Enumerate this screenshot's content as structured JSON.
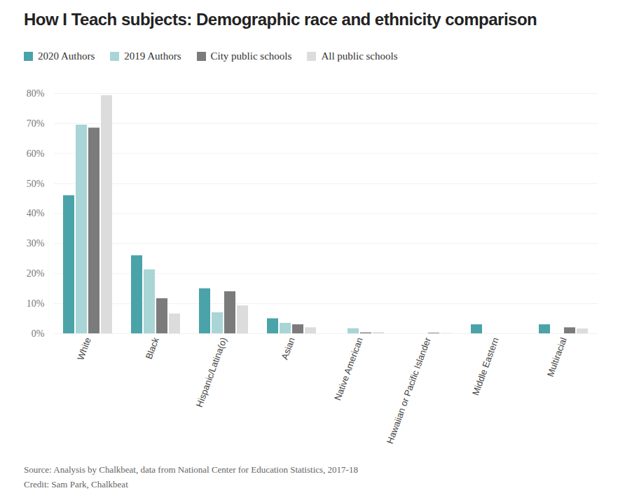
{
  "chart_data": {
    "type": "bar",
    "title": "How I Teach subjects: Demographic race and ethnicity comparison",
    "categories": [
      "White",
      "Black",
      "Hispanic/Latina(o)",
      "Asian",
      "Native American",
      "Hawaiian or Pacific Islander",
      "Middle Eastern",
      "Multiracial"
    ],
    "series": [
      {
        "name": "2020 Authors",
        "color": "#4aa3a8",
        "values": [
          46,
          26,
          15,
          5,
          0,
          0,
          3,
          3
        ]
      },
      {
        "name": "2019 Authors",
        "color": "#a9d5d7",
        "values": [
          69.5,
          21.3,
          7,
          3.5,
          1.7,
          0,
          0,
          0
        ]
      },
      {
        "name": "City public schools",
        "color": "#7b7b7b",
        "values": [
          68.5,
          11.7,
          14,
          3,
          0.3,
          0.2,
          0,
          2
        ]
      },
      {
        "name": "All public schools",
        "color": "#dcdcdc",
        "values": [
          79.3,
          6.6,
          9.3,
          2,
          0.4,
          0.1,
          0,
          1.6
        ]
      }
    ],
    "ylim": [
      0,
      80
    ],
    "yticks": [
      {
        "value": 0,
        "label": "0%"
      },
      {
        "value": 10,
        "label": "10%"
      },
      {
        "value": 20,
        "label": "20%"
      },
      {
        "value": 30,
        "label": "30%"
      },
      {
        "value": 40,
        "label": "40%"
      },
      {
        "value": 50,
        "label": "50%"
      },
      {
        "value": 60,
        "label": "60%"
      },
      {
        "value": 70,
        "label": "70%"
      },
      {
        "value": 80,
        "label": "80%"
      }
    ],
    "grid": true,
    "notes": [
      "Source: Analysis by Chalkbeat, data from National Center for Education Statistics, 2017-18",
      "Credit: Sam Park, Chalkbeat"
    ]
  }
}
